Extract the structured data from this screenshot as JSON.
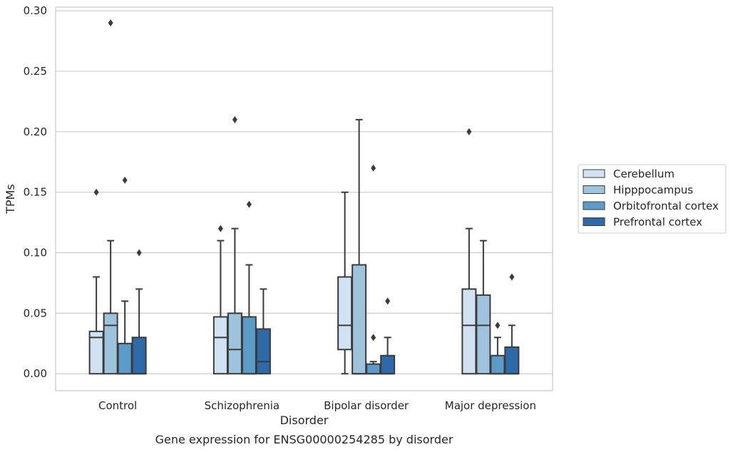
{
  "chart_data": {
    "type": "box",
    "title": "Gene expression for ENSG00000254285 by disorder",
    "xlabel": "Disorder",
    "ylabel": "TPMs",
    "ylim": [
      -0.014,
      0.303
    ],
    "yticks": [
      "0.00",
      "0.05",
      "0.10",
      "0.15",
      "0.20",
      "0.25",
      "0.30"
    ],
    "grid": "horizontal",
    "legend_position": "right",
    "categories": [
      "Control",
      "Schizophrenia",
      "Bipolar disorder",
      "Major depression"
    ],
    "series": [
      {
        "name": "Cerebellum",
        "color": "#d1e2f2",
        "boxes": [
          {
            "q1": 0.0,
            "median": 0.03,
            "q3": 0.035,
            "whisker_low": 0.0,
            "whisker_high": 0.08,
            "outliers": [
              0.15
            ]
          },
          {
            "q1": 0.0,
            "median": 0.03,
            "q3": 0.047,
            "whisker_low": 0.0,
            "whisker_high": 0.11,
            "outliers": [
              0.12
            ]
          },
          {
            "q1": 0.02,
            "median": 0.04,
            "q3": 0.08,
            "whisker_low": 0.0,
            "whisker_high": 0.15,
            "outliers": []
          },
          {
            "q1": 0.0,
            "median": 0.04,
            "q3": 0.07,
            "whisker_low": 0.0,
            "whisker_high": 0.12,
            "outliers": [
              0.2
            ]
          }
        ]
      },
      {
        "name": "Hipppocampus",
        "color": "#9dc3dd",
        "boxes": [
          {
            "q1": 0.0,
            "median": 0.04,
            "q3": 0.05,
            "whisker_low": 0.0,
            "whisker_high": 0.11,
            "outliers": [
              0.29
            ]
          },
          {
            "q1": 0.0,
            "median": 0.02,
            "q3": 0.05,
            "whisker_low": 0.0,
            "whisker_high": 0.12,
            "outliers": [
              0.21
            ]
          },
          {
            "q1": 0.0,
            "median": 0.0,
            "q3": 0.09,
            "whisker_low": 0.0,
            "whisker_high": 0.21,
            "outliers": []
          },
          {
            "q1": 0.0,
            "median": 0.04,
            "q3": 0.065,
            "whisker_low": 0.0,
            "whisker_high": 0.11,
            "outliers": []
          }
        ]
      },
      {
        "name": "Orbitofrontal cortex",
        "color": "#5a9bc8",
        "boxes": [
          {
            "q1": 0.0,
            "median": 0.0,
            "q3": 0.025,
            "whisker_low": 0.0,
            "whisker_high": 0.06,
            "outliers": [
              0.16
            ]
          },
          {
            "q1": 0.0,
            "median": 0.0,
            "q3": 0.047,
            "whisker_low": 0.0,
            "whisker_high": 0.09,
            "outliers": [
              0.14
            ]
          },
          {
            "q1": 0.0,
            "median": 0.0,
            "q3": 0.008,
            "whisker_low": 0.0,
            "whisker_high": 0.01,
            "outliers": [
              0.03,
              0.17
            ]
          },
          {
            "q1": 0.0,
            "median": 0.0,
            "q3": 0.015,
            "whisker_low": 0.0,
            "whisker_high": 0.03,
            "outliers": [
              0.04
            ]
          }
        ]
      },
      {
        "name": "Prefrontal cortex",
        "color": "#2d6aa7",
        "boxes": [
          {
            "q1": 0.0,
            "median": 0.0,
            "q3": 0.03,
            "whisker_low": 0.0,
            "whisker_high": 0.07,
            "outliers": [
              0.1
            ]
          },
          {
            "q1": 0.0,
            "median": 0.01,
            "q3": 0.037,
            "whisker_low": 0.0,
            "whisker_high": 0.07,
            "outliers": []
          },
          {
            "q1": 0.0,
            "median": 0.0,
            "q3": 0.015,
            "whisker_low": 0.0,
            "whisker_high": 0.03,
            "outliers": [
              0.06
            ]
          },
          {
            "q1": 0.0,
            "median": 0.0,
            "q3": 0.022,
            "whisker_low": 0.0,
            "whisker_high": 0.04,
            "outliers": [
              0.08
            ]
          }
        ]
      }
    ]
  }
}
